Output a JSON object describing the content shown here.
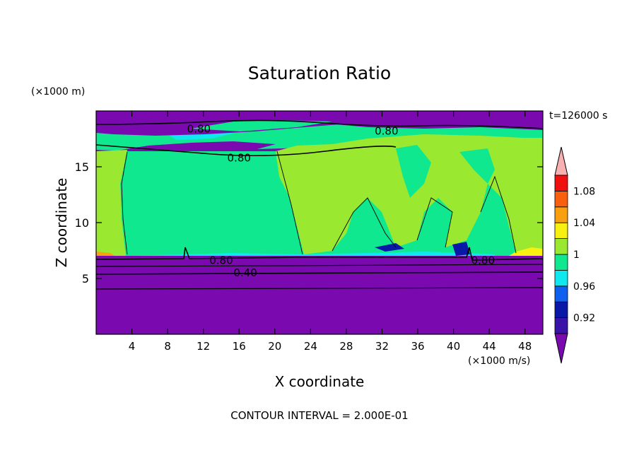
{
  "chart_data": {
    "type": "heatmap",
    "title": "Saturation Ratio",
    "xlabel": "X coordinate",
    "ylabel": "Z coordinate",
    "x_unit": "(×1000 m/s)",
    "y_unit": "(×1000 m)",
    "time_label": "t=126000 s",
    "footer": "CONTOUR INTERVAL = 2.000E-01",
    "xlim": [
      0,
      50
    ],
    "ylim": [
      0,
      20
    ],
    "x_ticks": [
      "4",
      "8",
      "12",
      "16",
      "20",
      "24",
      "28",
      "32",
      "36",
      "40",
      "44",
      "48"
    ],
    "y_ticks": [
      "5",
      "10",
      "15"
    ],
    "colorbar": {
      "labels": [
        "0.92",
        "0.96",
        "1",
        "1.04",
        "1.08"
      ],
      "levels": [
        0.9,
        0.92,
        0.94,
        0.96,
        0.98,
        1.0,
        1.02,
        1.04,
        1.06,
        1.08,
        1.1
      ],
      "colors": [
        "#7a0ab0",
        "#3a14a8",
        "#0a18a8",
        "#1060f0",
        "#10e8f0",
        "#10e890",
        "#9ae830",
        "#f8f010",
        "#f8a010",
        "#f86010",
        "#f01010",
        "#f8b0b0"
      ]
    },
    "contour_labels": [
      {
        "text": "0.80",
        "x": 11.5,
        "z": 18.4
      },
      {
        "text": "0.80",
        "x": 32.5,
        "z": 18.2
      },
      {
        "text": "0.80",
        "x": 16.0,
        "z": 15.8
      },
      {
        "text": "0.80",
        "x": 14.0,
        "z": 6.6
      },
      {
        "text": "0.80",
        "x": 43.3,
        "z": 6.6
      },
      {
        "text": "0.40",
        "x": 16.7,
        "z": 5.5
      }
    ]
  }
}
